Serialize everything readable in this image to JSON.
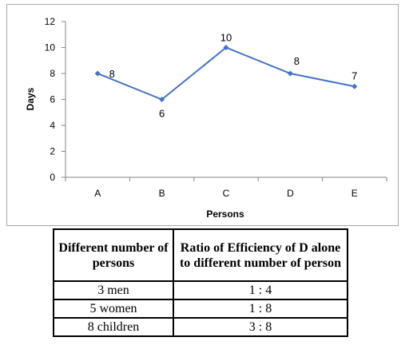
{
  "chart_data": {
    "type": "line",
    "categories": [
      "A",
      "B",
      "C",
      "D",
      "E"
    ],
    "values": [
      8,
      6,
      10,
      8,
      7
    ],
    "data_labels": [
      "8",
      "6",
      "10",
      "8",
      "7"
    ],
    "xlabel": "Persons",
    "ylabel": "Days",
    "ylim": [
      0,
      12
    ],
    "yticks": [
      0,
      2,
      4,
      6,
      8,
      10,
      12
    ],
    "grid": false,
    "legend": "none",
    "line_color": "#4472c4"
  },
  "table": {
    "headers": [
      "Different number of persons",
      "Ratio of Efficiency of D alone to different number of person"
    ],
    "rows": [
      [
        "3 men",
        "1 : 4"
      ],
      [
        "5 women",
        "1 : 8"
      ],
      [
        "8 children",
        "3 : 8"
      ]
    ]
  }
}
